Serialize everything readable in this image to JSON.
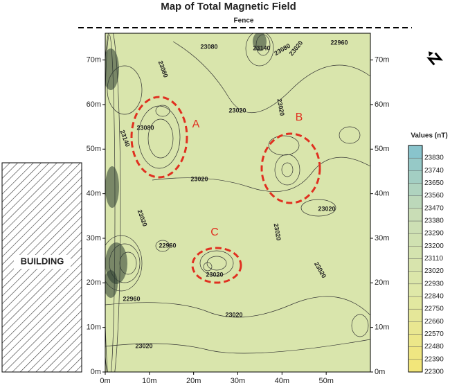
{
  "chart_data": {
    "type": "contour",
    "title": "Map of Total Magnetic Field",
    "fence_label": "Fence",
    "building_label": "BUILDING",
    "anomaly_labels": [
      "A",
      "B",
      "C"
    ],
    "colorbar_title": "Values (nT)",
    "xlim": [
      0,
      60
    ],
    "ylim": [
      0,
      76
    ],
    "xticks": [
      {
        "value": 0,
        "label": "0m"
      },
      {
        "value": 10,
        "label": "10m"
      },
      {
        "value": 20,
        "label": "20m"
      },
      {
        "value": 30,
        "label": "30m"
      },
      {
        "value": 40,
        "label": "40m"
      },
      {
        "value": 50,
        "label": "50m"
      }
    ],
    "yticks": [
      {
        "value": 0,
        "label": "0m"
      },
      {
        "value": 10,
        "label": "10m"
      },
      {
        "value": 20,
        "label": "20m"
      },
      {
        "value": 30,
        "label": "30m"
      },
      {
        "value": 40,
        "label": "40m"
      },
      {
        "value": 50,
        "label": "50m"
      },
      {
        "value": 60,
        "label": "60m"
      },
      {
        "value": 70,
        "label": "70m"
      }
    ],
    "clim": [
      22300,
      23920
    ],
    "cticks": [
      22300,
      22390,
      22480,
      22570,
      22660,
      22750,
      22840,
      22930,
      23020,
      23110,
      23200,
      23290,
      23380,
      23470,
      23560,
      23650,
      23740,
      23830
    ],
    "colors": [
      "#f2e67a",
      "#dfe8a8",
      "#c9ddb6",
      "#7cbfd0"
    ],
    "contour_labels": [
      23080,
      23140,
      23080,
      23020,
      22960,
      23080,
      23020,
      23020,
      23080,
      23140,
      23020,
      23020,
      22960,
      23020,
      23020,
      23020,
      22960,
      23020,
      23020,
      23020
    ]
  }
}
